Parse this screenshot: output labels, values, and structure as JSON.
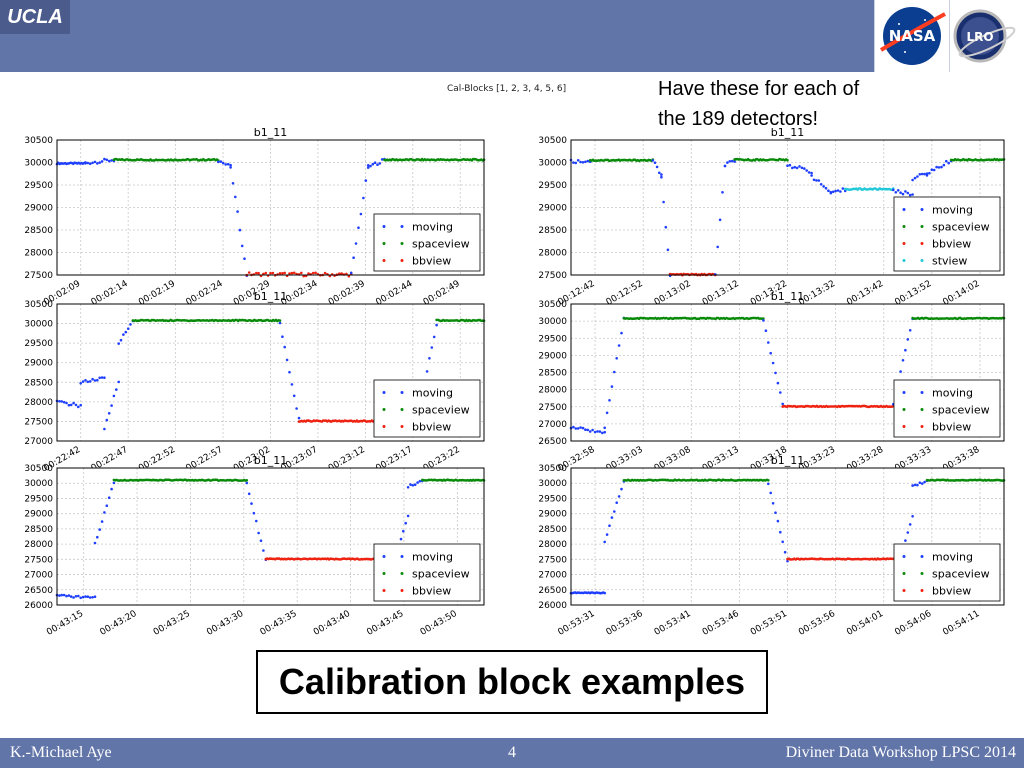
{
  "header": {
    "logo_text": "UCLA",
    "nasa_logo_text": "NASA",
    "lro_logo_text": "LRO",
    "accent": "#6275a8"
  },
  "figure": {
    "suptitle": "Cal-Blocks [1, 2, 3, 4, 5, 6]",
    "note_line1": "Have these for each of",
    "note_line2": "the 189 detectors!",
    "bottom_title": "Calibration block examples"
  },
  "footer": {
    "author": "K.-Michael Aye",
    "page": "4",
    "event": "Diviner Data Workshop LPSC 2014"
  },
  "series_colors": {
    "moving": "#1f3fff",
    "spaceview": "#0a8a0a",
    "bbview": "#ee2211",
    "stview": "#22c8d8"
  },
  "chart_data": [
    {
      "type": "scatter",
      "title": "b1_11",
      "ylim": [
        27500,
        30500
      ],
      "yticks": [
        "27500",
        "28000",
        "28500",
        "29000",
        "29500",
        "30000",
        "30500"
      ],
      "xlim": [
        0,
        45
      ],
      "xticks": [
        "00:02:09",
        "00:02:14",
        "00:02:19",
        "00:02:24",
        "00:02:29",
        "00:02:34",
        "00:02:39",
        "00:02:44",
        "00:02:49"
      ],
      "legend": [
        "moving",
        "spaceview",
        "bbview"
      ],
      "legend_loc": "center-right",
      "segments": [
        {
          "s": "moving",
          "x0": 0,
          "x1": 3,
          "y0": 29980,
          "y1": 29980
        },
        {
          "s": "moving",
          "x0": 3,
          "x1": 6,
          "y0": 29990,
          "y1": 30060
        },
        {
          "s": "spaceview",
          "x0": 6,
          "x1": 17,
          "y0": 30060,
          "y1": 30060
        },
        {
          "s": "moving",
          "x0": 17,
          "x1": 18.3,
          "y0": 30050,
          "y1": 29900
        },
        {
          "s": "moving",
          "x0": 18.3,
          "x1": 20,
          "y0": 29900,
          "y1": 27500
        },
        {
          "s": "bbview",
          "x0": 20,
          "x1": 31,
          "y0": 27520,
          "y1": 27510
        },
        {
          "s": "moving",
          "x0": 31,
          "x1": 32.8,
          "y0": 27520,
          "y1": 29900
        },
        {
          "s": "moving",
          "x0": 32.8,
          "x1": 34.5,
          "y0": 29900,
          "y1": 30060
        },
        {
          "s": "spaceview",
          "x0": 34.5,
          "x1": 45,
          "y0": 30060,
          "y1": 30060
        }
      ]
    },
    {
      "type": "scatter",
      "title": "b1_11",
      "ylim": [
        27500,
        30500
      ],
      "yticks": [
        "27500",
        "28000",
        "28500",
        "29000",
        "29500",
        "30000",
        "30500"
      ],
      "xlim": [
        0,
        45
      ],
      "xticks": [
        "00:12:42",
        "00:12:52",
        "00:13:02",
        "00:13:12",
        "00:13:22",
        "00:13:32",
        "00:13:42",
        "00:13:52",
        "00:14:02"
      ],
      "legend": [
        "moving",
        "spaceview",
        "bbview",
        "stview"
      ],
      "legend_loc": "center-right",
      "segments": [
        {
          "s": "moving",
          "x0": 0,
          "x1": 2,
          "y0": 30020,
          "y1": 30040
        },
        {
          "s": "spaceview",
          "x0": 2,
          "x1": 8.5,
          "y0": 30050,
          "y1": 30050
        },
        {
          "s": "moving",
          "x0": 8.5,
          "x1": 9.4,
          "y0": 30050,
          "y1": 29700
        },
        {
          "s": "moving",
          "x0": 9.4,
          "x1": 10.3,
          "y0": 29700,
          "y1": 27500
        },
        {
          "s": "bbview",
          "x0": 10.3,
          "x1": 15,
          "y0": 27510,
          "y1": 27510
        },
        {
          "s": "moving",
          "x0": 15,
          "x1": 16,
          "y0": 27510,
          "y1": 29900
        },
        {
          "s": "moving",
          "x0": 16,
          "x1": 17,
          "y0": 29950,
          "y1": 30050
        },
        {
          "s": "spaceview",
          "x0": 17,
          "x1": 22.5,
          "y0": 30060,
          "y1": 30060
        },
        {
          "s": "moving",
          "x0": 22.5,
          "x1": 25,
          "y0": 29950,
          "y1": 29800
        },
        {
          "s": "moving",
          "x0": 25,
          "x1": 27,
          "y0": 29700,
          "y1": 29330
        },
        {
          "s": "moving",
          "x0": 27,
          "x1": 28.5,
          "y0": 29300,
          "y1": 29400
        },
        {
          "s": "stview",
          "x0": 28.5,
          "x1": 33.5,
          "y0": 29410,
          "y1": 29410
        },
        {
          "s": "moving",
          "x0": 33.5,
          "x1": 35.5,
          "y0": 29360,
          "y1": 29300
        },
        {
          "s": "moving",
          "x0": 35.5,
          "x1": 37,
          "y0": 29650,
          "y1": 29750
        },
        {
          "s": "moving",
          "x0": 37,
          "x1": 39.5,
          "y0": 29750,
          "y1": 30050
        },
        {
          "s": "spaceview",
          "x0": 39.5,
          "x1": 45,
          "y0": 30060,
          "y1": 30060
        }
      ]
    },
    {
      "type": "scatter",
      "title": "b1_11",
      "ylim": [
        27000,
        30500
      ],
      "yticks": [
        "27000",
        "27500",
        "28000",
        "28500",
        "29000",
        "29500",
        "30000",
        "30500"
      ],
      "xlim": [
        0,
        45
      ],
      "xticks": [
        "00:22:42",
        "00:22:47",
        "00:22:52",
        "00:22:57",
        "00:23:02",
        "00:23:07",
        "00:23:12",
        "00:23:17",
        "00:23:22"
      ],
      "legend": [
        "moving",
        "spaceview",
        "bbview"
      ],
      "legend_loc": "center-right",
      "segments": [
        {
          "s": "moving",
          "x0": 0,
          "x1": 2.5,
          "y0": 28000,
          "y1": 27900
        },
        {
          "s": "moving",
          "x0": 2.5,
          "x1": 5,
          "y0": 28500,
          "y1": 28600
        },
        {
          "s": "moving",
          "x0": 5,
          "x1": 6.5,
          "y0": 27300,
          "y1": 28550
        },
        {
          "s": "moving",
          "x0": 6.5,
          "x1": 8,
          "y0": 29500,
          "y1": 30060
        },
        {
          "s": "spaceview",
          "x0": 8,
          "x1": 23.5,
          "y0": 30080,
          "y1": 30080
        },
        {
          "s": "moving",
          "x0": 23.5,
          "x1": 25.5,
          "y0": 30000,
          "y1": 27550
        },
        {
          "s": "bbview",
          "x0": 25.5,
          "x1": 38,
          "y0": 27510,
          "y1": 27510
        },
        {
          "s": "moving",
          "x0": 38,
          "x1": 40,
          "y0": 27550,
          "y1": 30000
        },
        {
          "s": "spaceview",
          "x0": 40,
          "x1": 45,
          "y0": 30080,
          "y1": 30080
        }
      ]
    },
    {
      "type": "scatter",
      "title": "b1_11",
      "ylim": [
        26500,
        30500
      ],
      "yticks": [
        "26500",
        "27000",
        "27500",
        "28000",
        "28500",
        "29000",
        "29500",
        "30000",
        "30500"
      ],
      "xlim": [
        0,
        45
      ],
      "xticks": [
        "00:32:58",
        "00:33:03",
        "00:33:08",
        "00:33:13",
        "00:33:18",
        "00:33:23",
        "00:33:28",
        "00:33:33",
        "00:33:38"
      ],
      "legend": [
        "moving",
        "spaceview",
        "bbview"
      ],
      "legend_loc": "center-right",
      "segments": [
        {
          "s": "moving",
          "x0": 0,
          "x1": 3.5,
          "y0": 26900,
          "y1": 26750
        },
        {
          "s": "moving",
          "x0": 3.5,
          "x1": 5.5,
          "y0": 26900,
          "y1": 30060
        },
        {
          "s": "spaceview",
          "x0": 5.5,
          "x1": 20,
          "y0": 30080,
          "y1": 30080
        },
        {
          "s": "moving",
          "x0": 20,
          "x1": 22,
          "y0": 30000,
          "y1": 27600
        },
        {
          "s": "bbview",
          "x0": 22,
          "x1": 33.5,
          "y0": 27510,
          "y1": 27510
        },
        {
          "s": "moving",
          "x0": 33.5,
          "x1": 35.5,
          "y0": 27600,
          "y1": 30050
        },
        {
          "s": "spaceview",
          "x0": 35.5,
          "x1": 45,
          "y0": 30080,
          "y1": 30080
        }
      ]
    },
    {
      "type": "scatter",
      "title": "b1_11",
      "ylim": [
        26000,
        30500
      ],
      "yticks": [
        "26000",
        "26500",
        "27000",
        "27500",
        "28000",
        "28500",
        "29000",
        "29500",
        "30000",
        "30500"
      ],
      "xlim": [
        0,
        45
      ],
      "xticks": [
        "00:43:15",
        "00:43:20",
        "00:43:25",
        "00:43:30",
        "00:43:35",
        "00:43:40",
        "00:43:45",
        "00:43:50"
      ],
      "legend": [
        "moving",
        "spaceview",
        "bbview"
      ],
      "legend_loc": "center-right",
      "segments": [
        {
          "s": "moving",
          "x0": 0,
          "x1": 4,
          "y0": 26300,
          "y1": 26250
        },
        {
          "s": "moving",
          "x0": 4,
          "x1": 6,
          "y0": 28000,
          "y1": 30050
        },
        {
          "s": "spaceview",
          "x0": 6,
          "x1": 20,
          "y0": 30100,
          "y1": 30100
        },
        {
          "s": "moving",
          "x0": 20,
          "x1": 22,
          "y0": 30000,
          "y1": 27450
        },
        {
          "s": "bbview",
          "x0": 22,
          "x1": 35.5,
          "y0": 27510,
          "y1": 27510
        },
        {
          "s": "moving",
          "x0": 35.5,
          "x1": 37,
          "y0": 27400,
          "y1": 28900
        },
        {
          "s": "moving",
          "x0": 37,
          "x1": 38.5,
          "y0": 29900,
          "y1": 30080
        },
        {
          "s": "spaceview",
          "x0": 38.5,
          "x1": 45,
          "y0": 30100,
          "y1": 30100
        }
      ]
    },
    {
      "type": "scatter",
      "title": "b1_11",
      "ylim": [
        26000,
        30500
      ],
      "yticks": [
        "26000",
        "26500",
        "27000",
        "27500",
        "28000",
        "28500",
        "29000",
        "29500",
        "30000",
        "30500"
      ],
      "xlim": [
        0,
        45
      ],
      "xticks": [
        "00:53:31",
        "00:53:36",
        "00:53:41",
        "00:53:46",
        "00:53:51",
        "00:53:56",
        "00:54:01",
        "00:54:06",
        "00:54:11"
      ],
      "legend": [
        "moving",
        "spaceview",
        "bbview"
      ],
      "legend_loc": "center-right",
      "segments": [
        {
          "s": "moving",
          "x0": 0,
          "x1": 3.5,
          "y0": 26400,
          "y1": 26400
        },
        {
          "s": "moving",
          "x0": 3.5,
          "x1": 5.5,
          "y0": 28100,
          "y1": 30060
        },
        {
          "s": "spaceview",
          "x0": 5.5,
          "x1": 20.5,
          "y0": 30100,
          "y1": 30100
        },
        {
          "s": "moving",
          "x0": 20.5,
          "x1": 22.5,
          "y0": 30000,
          "y1": 27450
        },
        {
          "s": "bbview",
          "x0": 22.5,
          "x1": 34,
          "y0": 27510,
          "y1": 27510
        },
        {
          "s": "moving",
          "x0": 34,
          "x1": 35.5,
          "y0": 27350,
          "y1": 28900
        },
        {
          "s": "moving",
          "x0": 35.5,
          "x1": 37,
          "y0": 29900,
          "y1": 30080
        },
        {
          "s": "spaceview",
          "x0": 37,
          "x1": 45,
          "y0": 30100,
          "y1": 30100
        }
      ]
    }
  ]
}
